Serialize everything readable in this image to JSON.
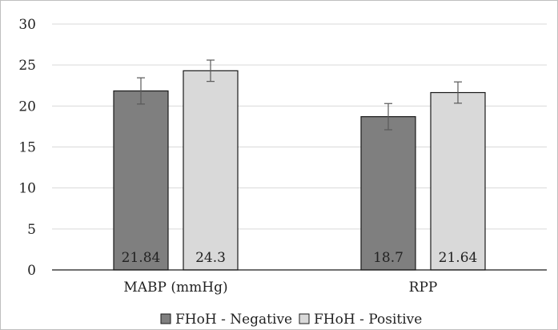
{
  "chart_data": {
    "type": "bar",
    "categories": [
      "MABP (mmHg)",
      "RPP"
    ],
    "series": [
      {
        "name": "FHoH - Negative",
        "values": [
          21.84,
          18.7
        ],
        "errors": [
          1.6,
          1.6
        ],
        "color": "#7f7f7f",
        "labels": [
          "21.84",
          "18.7"
        ]
      },
      {
        "name": "FHoH - Positive",
        "values": [
          24.3,
          21.64
        ],
        "errors": [
          1.3,
          1.3
        ],
        "color": "#d9d9d9",
        "labels": [
          "24.3",
          "21.64"
        ]
      }
    ],
    "ylim": [
      0,
      30
    ],
    "yticks": [
      0,
      5,
      10,
      15,
      20,
      25,
      30
    ],
    "grid": true,
    "legend_position": "bottom",
    "gridline_color": "#d9d9d9",
    "bar_stroke_color": "#1a1a1a"
  }
}
